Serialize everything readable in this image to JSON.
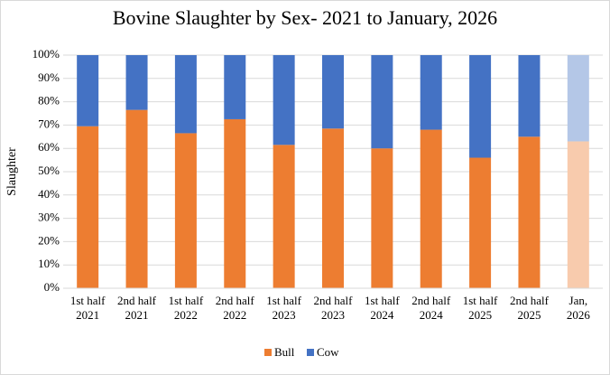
{
  "chart_data": {
    "type": "stacked_bar",
    "title": "Bovine Slaughter by Sex- 2021 to January, 2026",
    "y_label": "Slaughter",
    "categories": [
      "1st half\n2021",
      "2nd half\n2021",
      "1st half\n2022",
      "2nd half\n2022",
      "1st half\n2023",
      "2nd half\n2023",
      "1st half\n2024",
      "2nd half\n2024",
      "1st half\n2025",
      "2nd half\n2025",
      "Jan,\n2026"
    ],
    "series": [
      {
        "name": "Bull",
        "color": "#ed7d31",
        "point_colors": [
          "#ed7d31",
          "#ed7d31",
          "#ed7d31",
          "#ed7d31",
          "#ed7d31",
          "#ed7d31",
          "#ed7d31",
          "#ed7d31",
          "#ed7d31",
          "#ed7d31",
          "#f8cbad"
        ],
        "values": [
          69.5,
          76.5,
          66.5,
          72.5,
          61.5,
          68.5,
          60,
          68,
          56,
          65,
          63
        ]
      },
      {
        "name": "Cow",
        "color": "#4472c4",
        "point_colors": [
          "#4472c4",
          "#4472c4",
          "#4472c4",
          "#4472c4",
          "#4472c4",
          "#4472c4",
          "#4472c4",
          "#4472c4",
          "#4472c4",
          "#4472c4",
          "#b4c7e7"
        ],
        "values": [
          30.5,
          23.5,
          33.5,
          27.5,
          38.5,
          31.5,
          40,
          32,
          44,
          35,
          37
        ]
      }
    ],
    "ylim": [
      0,
      100
    ],
    "yticks": [
      {
        "value": 0,
        "label": "0%"
      },
      {
        "value": 10,
        "label": "10%"
      },
      {
        "value": 20,
        "label": "20%"
      },
      {
        "value": 30,
        "label": "30%"
      },
      {
        "value": 40,
        "label": "40%"
      },
      {
        "value": 50,
        "label": "50%"
      },
      {
        "value": 60,
        "label": "60%"
      },
      {
        "value": 70,
        "label": "70%"
      },
      {
        "value": 80,
        "label": "80%"
      },
      {
        "value": 90,
        "label": "90%"
      },
      {
        "value": 100,
        "label": "100%"
      }
    ],
    "grid": true,
    "legend": "bottom"
  }
}
